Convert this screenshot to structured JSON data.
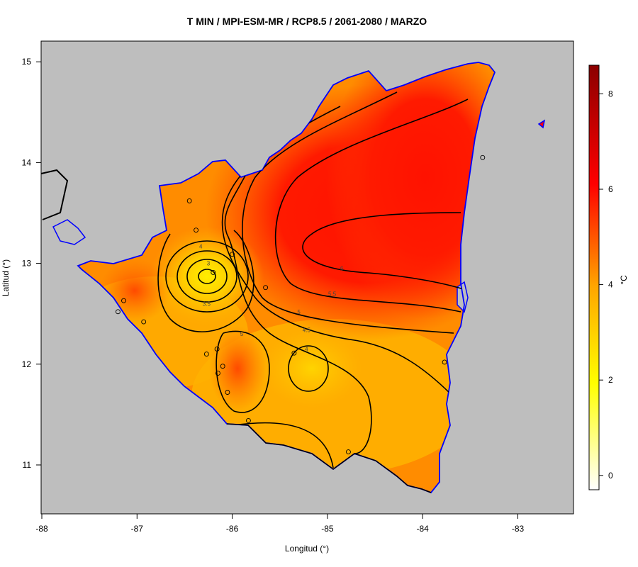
{
  "title": "T MIN / MPI-ESM-MR / RCP8.5 / 2061-2080 / MARZO",
  "x_axis": {
    "label": "Longitud (°)",
    "ticks": [
      {
        "v": -88,
        "t": "-88"
      },
      {
        "v": -87,
        "t": "-87"
      },
      {
        "v": -86,
        "t": "-86"
      },
      {
        "v": -85,
        "t": "-85"
      },
      {
        "v": -84,
        "t": "-84"
      },
      {
        "v": -83,
        "t": "-83"
      }
    ]
  },
  "y_axis": {
    "label": "Latitud (°)",
    "ticks": [
      {
        "v": 11,
        "t": "11"
      },
      {
        "v": 12,
        "t": "12"
      },
      {
        "v": 13,
        "t": "13"
      },
      {
        "v": 14,
        "t": "14"
      },
      {
        "v": 15,
        "t": "15"
      }
    ]
  },
  "colorbar": {
    "unit_label": "°C",
    "range": [
      -0.3,
      8.6
    ],
    "ticks": [
      {
        "v": 0,
        "t": "0"
      },
      {
        "v": 2,
        "t": "2"
      },
      {
        "v": 4,
        "t": "4"
      },
      {
        "v": 6,
        "t": "6"
      },
      {
        "v": 8,
        "t": "8"
      }
    ],
    "colors": [
      "#ffffff",
      "#ffff00",
      "#ffa500",
      "#ff0000",
      "#8b0000"
    ]
  },
  "contour_labels": [
    {
      "t": "6",
      "lon": -84.85,
      "lat": 12.95
    },
    {
      "t": "5.5",
      "lon": -84.95,
      "lat": 12.7
    },
    {
      "t": "5",
      "lon": -85.3,
      "lat": 12.52
    },
    {
      "t": "4.5",
      "lon": -85.22,
      "lat": 12.34
    },
    {
      "t": "4",
      "lon": -85.22,
      "lat": 12.15
    },
    {
      "t": "5",
      "lon": -85.9,
      "lat": 12.3
    },
    {
      "t": "4",
      "lon": -86.33,
      "lat": 13.17
    },
    {
      "t": "3.5",
      "lon": -86.27,
      "lat": 12.6
    },
    {
      "t": "3",
      "lon": -86.25,
      "lat": 13.0
    }
  ],
  "stations": [
    {
      "lon": -86.45,
      "lat": 13.62
    },
    {
      "lon": -86.38,
      "lat": 13.33
    },
    {
      "lon": -86.0,
      "lat": 13.09
    },
    {
      "lon": -86.2,
      "lat": 12.91
    },
    {
      "lon": -85.65,
      "lat": 12.76
    },
    {
      "lon": -87.14,
      "lat": 12.63
    },
    {
      "lon": -86.93,
      "lat": 12.42
    },
    {
      "lon": -87.2,
      "lat": 12.52
    },
    {
      "lon": -86.16,
      "lat": 12.15
    },
    {
      "lon": -86.27,
      "lat": 12.1
    },
    {
      "lon": -86.15,
      "lat": 11.91
    },
    {
      "lon": -86.1,
      "lat": 11.98
    },
    {
      "lon": -86.05,
      "lat": 11.72
    },
    {
      "lon": -85.35,
      "lat": 12.11
    },
    {
      "lon": -85.83,
      "lat": 11.44
    },
    {
      "lon": -84.78,
      "lat": 11.13
    },
    {
      "lon": -83.77,
      "lat": 12.02
    },
    {
      "lon": -83.37,
      "lat": 14.05
    }
  ]
}
